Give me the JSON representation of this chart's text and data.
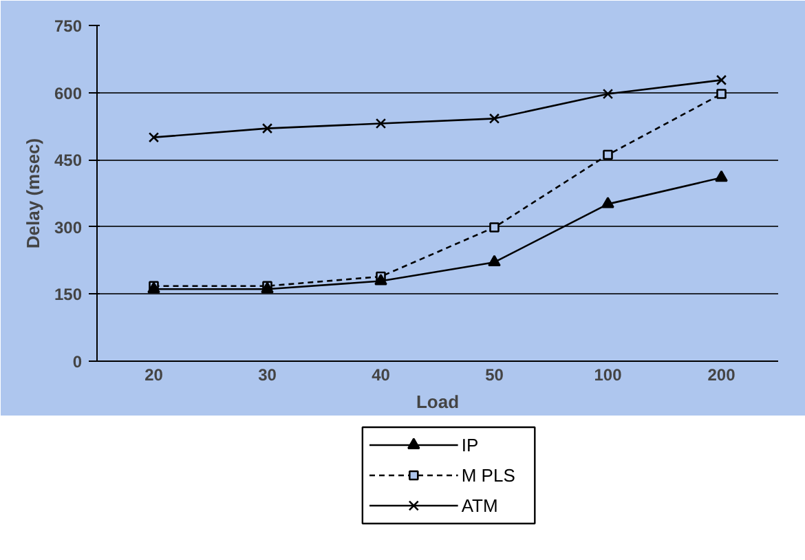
{
  "chart_data": {
    "type": "line",
    "xlabel": "Load",
    "ylabel": "Delay (msec)",
    "categories": [
      "20",
      "30",
      "40",
      "50",
      "100",
      "200"
    ],
    "series": [
      {
        "name": "IP",
        "color": "#000000",
        "marker": "triangle",
        "line_style": "solid",
        "values": [
          161,
          161,
          179,
          221,
          351,
          410
        ]
      },
      {
        "name": "M PLS",
        "color": "#000000",
        "marker": "square",
        "line_style": "dashed",
        "values": [
          168,
          168,
          189,
          299,
          461,
          597
        ]
      },
      {
        "name": "ATM",
        "color": "#000000",
        "marker": "cross",
        "line_style": "solid",
        "values": [
          500,
          520,
          531,
          542,
          597,
          628
        ]
      }
    ],
    "ylim": [
      0,
      750
    ],
    "yticks": [
      0,
      150,
      300,
      450,
      600,
      750
    ],
    "grid": "y",
    "legend": "bottom"
  }
}
